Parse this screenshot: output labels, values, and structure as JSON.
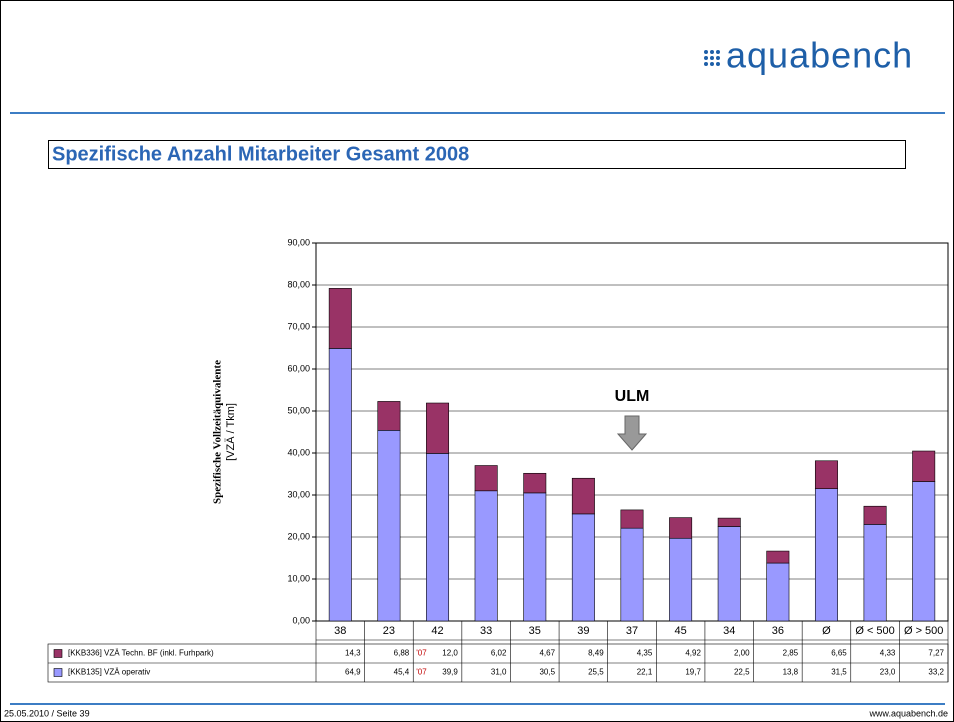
{
  "header": {
    "logo": "aquabench"
  },
  "chart_data": {
    "type": "stacked_bar",
    "title": "Spezifische Anzahl Mitarbeiter Gesamt 2008",
    "y_label": "Spezifische Vollzeitäquivalente",
    "y_unit": "[VZÄ / Tkm]",
    "annotation": "ULM",
    "categories": [
      "38",
      "23",
      "42",
      "33",
      "35",
      "39",
      "37",
      "45",
      "34",
      "36",
      "Ø",
      "Ø < 500",
      "Ø > 500"
    ],
    "series": [
      {
        "name": "[KKB135] VZÄ operativ",
        "color": "#9999ff",
        "values": [
          64.9,
          45.4,
          39.9,
          31.0,
          30.5,
          25.5,
          22.1,
          19.7,
          22.5,
          13.8,
          31.5,
          23.0,
          33.2
        ],
        "value_labels": [
          "64,9",
          "45,4",
          "39,9",
          "31,0",
          "30,5",
          "25,5",
          "22,1",
          "19,7",
          "22,5",
          "13,8",
          "31,5",
          "23,0",
          "33,2"
        ],
        "notes": [
          null,
          null,
          "'07",
          null,
          null,
          null,
          null,
          null,
          null,
          null,
          null,
          null,
          null
        ]
      },
      {
        "name": "[KKB336] VZÄ Techn. BF (inkl. Furhpark)",
        "color": "#993366",
        "values": [
          14.3,
          6.88,
          12.0,
          6.02,
          4.67,
          8.49,
          4.35,
          4.92,
          2.0,
          2.85,
          6.65,
          4.33,
          7.27
        ],
        "value_labels": [
          "14,3",
          "6,88",
          "12,0",
          "6,02",
          "4,67",
          "8,49",
          "4,35",
          "4,92",
          "2,00",
          "2,85",
          "6,65",
          "4,33",
          "7,27"
        ],
        "notes": [
          null,
          null,
          "'07",
          null,
          null,
          null,
          null,
          null,
          null,
          null,
          null,
          null,
          null
        ]
      }
    ],
    "ylim": [
      0,
      90
    ],
    "yticks": [
      {
        "value": 0,
        "label": "0,00"
      },
      {
        "value": 10,
        "label": "10,00"
      },
      {
        "value": 20,
        "label": "20,00"
      },
      {
        "value": 30,
        "label": "30,00"
      },
      {
        "value": 40,
        "label": "40,00"
      },
      {
        "value": 50,
        "label": "50,00"
      },
      {
        "value": 60,
        "label": "60,00"
      },
      {
        "value": 70,
        "label": "70,00"
      },
      {
        "value": 80,
        "label": "80,00"
      },
      {
        "value": 90,
        "label": "90,00"
      }
    ],
    "grid": true
  },
  "footer": {
    "left": "25.05.2010 / Seite 39",
    "right": "www.aquabench.de"
  }
}
